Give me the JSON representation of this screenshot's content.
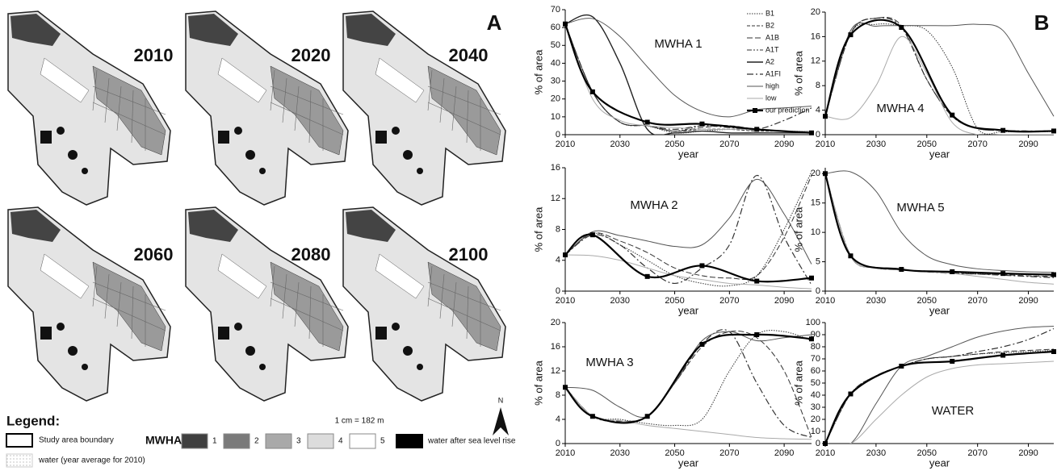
{
  "panel_a": {
    "label": "A",
    "years": [
      "2010",
      "2020",
      "2040",
      "2060",
      "2080",
      "2100"
    ],
    "scale": "1 cm = 182 m",
    "north": "N",
    "legend": {
      "title": "Legend:",
      "boundary": "Study area boundary",
      "mwha_title": "MWHA",
      "mwha_classes": [
        "1",
        "2",
        "3",
        "4",
        "5"
      ],
      "mwha_colors": [
        "#3f3f3f",
        "#7a7a7a",
        "#a9a9a9",
        "#dcdcdc",
        "#ffffff"
      ],
      "sea_rise": "water after sea level rise",
      "water_2010": "water (year average for 2010)"
    }
  },
  "panel_b_label": "B",
  "chart_data": [
    {
      "type": "line",
      "annotation": "MWHA 1",
      "y_label": "% of area",
      "x_label": "year",
      "legend": "upper right",
      "x": [
        2010,
        2020,
        2030,
        2040,
        2050,
        2060,
        2070,
        2080,
        2090,
        2100
      ],
      "xlim": [
        2010,
        2100
      ],
      "xticks": [
        2010,
        2030,
        2050,
        2070,
        2090
      ],
      "ylim": [
        0,
        70
      ],
      "yticks": [
        0,
        10,
        20,
        30,
        40,
        50,
        60,
        70
      ],
      "series": [
        {
          "name": "B1",
          "style": "dotted",
          "color": "#333",
          "values": [
            62,
            24,
            7,
            5,
            1,
            2,
            3,
            3,
            2,
            2
          ]
        },
        {
          "name": "B2",
          "style": "dashed",
          "color": "#333",
          "values": [
            62,
            24,
            7,
            5,
            2,
            3,
            3,
            2,
            2,
            1
          ]
        },
        {
          "name": "A1B",
          "style": "long-dashed",
          "color": "#333",
          "values": [
            62,
            24,
            7,
            5,
            2,
            4,
            5,
            3,
            2,
            1
          ]
        },
        {
          "name": "A1T",
          "style": "dash-dot-dot",
          "color": "#333",
          "values": [
            62,
            24,
            7,
            5,
            2,
            5,
            5,
            3,
            2,
            1
          ]
        },
        {
          "name": "A2",
          "style": "solid-dark",
          "color": "#222",
          "values": [
            62,
            66,
            40,
            3,
            1,
            2,
            1,
            1,
            1,
            1
          ]
        },
        {
          "name": "A1FI",
          "style": "dash-dot",
          "color": "#333",
          "values": [
            62,
            24,
            7,
            5,
            3,
            5,
            4,
            3,
            8,
            15
          ]
        },
        {
          "name": "high",
          "style": "solid",
          "color": "#555",
          "values": [
            62,
            65,
            55,
            38,
            22,
            13,
            10,
            14,
            15,
            16
          ]
        },
        {
          "name": "low",
          "style": "solid",
          "color": "#aaa",
          "values": [
            62,
            20,
            8,
            5,
            4,
            3,
            3,
            3,
            2,
            2
          ]
        },
        {
          "name": "our prediction",
          "style": "bold",
          "color": "#000",
          "marker": "square",
          "x": [
            2010,
            2020,
            2040,
            2060,
            2080,
            2100
          ],
          "values": [
            62,
            24,
            7,
            6,
            3,
            1
          ]
        }
      ]
    },
    {
      "type": "line",
      "annotation": "MWHA 4",
      "y_label": "% of area",
      "x_label": "year",
      "x": [
        2010,
        2020,
        2030,
        2040,
        2050,
        2060,
        2070,
        2080,
        2090,
        2100
      ],
      "xlim": [
        2010,
        2100
      ],
      "xticks": [
        2010,
        2030,
        2050,
        2070,
        2090
      ],
      "ylim": [
        0,
        20
      ],
      "yticks": [
        0,
        4,
        8,
        12,
        16,
        20
      ],
      "series": [
        {
          "style": "dotted",
          "color": "#333",
          "values": [
            3,
            16.5,
            18,
            17.8,
            17,
            11,
            1,
            0.5,
            0.5,
            0.5
          ]
        },
        {
          "style": "long-dashed",
          "color": "#333",
          "values": [
            3,
            16.5,
            19,
            17.8,
            9,
            3,
            1,
            0.7,
            0.6,
            0.6
          ]
        },
        {
          "style": "dash-dot",
          "color": "#333",
          "values": [
            3,
            16.5,
            19,
            17.5,
            9,
            3,
            1,
            0.7,
            0.6,
            0.6
          ]
        },
        {
          "style": "solid",
          "color": "#555",
          "values": [
            3,
            17,
            17.7,
            17.8,
            17.8,
            17.8,
            18,
            17,
            10,
            3
          ]
        },
        {
          "style": "solid",
          "color": "#aaa",
          "values": [
            3,
            2.8,
            8,
            16,
            10,
            2,
            0,
            0,
            0,
            0
          ]
        },
        {
          "style": "bold",
          "color": "#000",
          "marker": "square",
          "x": [
            2010,
            2020,
            2040,
            2060,
            2080,
            2100
          ],
          "values": [
            3,
            16.3,
            17.5,
            3.2,
            0.7,
            0.6
          ]
        }
      ]
    },
    {
      "type": "line",
      "annotation": "MWHA 2",
      "y_label": "% of area",
      "x_label": "year",
      "x": [
        2010,
        2020,
        2030,
        2040,
        2050,
        2060,
        2070,
        2080,
        2090,
        2100
      ],
      "xlim": [
        2010,
        2100
      ],
      "xticks": [
        2010,
        2030,
        2050,
        2070,
        2090
      ],
      "ylim": [
        0,
        16
      ],
      "yticks": [
        0,
        4,
        8,
        12,
        16
      ],
      "series": [
        {
          "style": "dotted",
          "color": "#333",
          "values": [
            4.7,
            7.5,
            6,
            4,
            2,
            1,
            0.7,
            2,
            8,
            15.5
          ]
        },
        {
          "style": "long-dashed",
          "color": "#333",
          "values": [
            4.7,
            7.5,
            6.5,
            5,
            3,
            2,
            1.7,
            2,
            7,
            15
          ]
        },
        {
          "style": "dash-dot",
          "color": "#333",
          "values": [
            4.7,
            7.3,
            6,
            3,
            1,
            3,
            6,
            15,
            7,
            0.8
          ]
        },
        {
          "style": "solid",
          "color": "#555",
          "values": [
            4.7,
            7.7,
            7.2,
            6.5,
            5.8,
            6,
            9.5,
            14.5,
            10,
            3.5
          ]
        },
        {
          "style": "solid",
          "color": "#aaa",
          "values": [
            4.7,
            4.6,
            4,
            3,
            2,
            1.5,
            1,
            0.8,
            0.5,
            0.3
          ]
        },
        {
          "style": "bold",
          "color": "#000",
          "marker": "square",
          "x": [
            2010,
            2020,
            2040,
            2060,
            2080,
            2100
          ],
          "values": [
            4.7,
            7.3,
            1.9,
            3.3,
            1.3,
            1.7
          ]
        }
      ]
    },
    {
      "type": "line",
      "annotation": "MWHA 5",
      "y_label": "% of area",
      "x_label": "year",
      "x": [
        2010,
        2020,
        2030,
        2040,
        2050,
        2060,
        2070,
        2080,
        2090,
        2100
      ],
      "xlim": [
        2010,
        2100
      ],
      "xticks": [
        2010,
        2030,
        2050,
        2070,
        2090
      ],
      "ylim": [
        0,
        21
      ],
      "yticks": [
        0,
        5,
        10,
        15,
        20
      ],
      "series": [
        {
          "style": "dotted",
          "color": "#333",
          "values": [
            20,
            6,
            4,
            3.6,
            3.3,
            3.2,
            3,
            2.9,
            2.8,
            2.7
          ]
        },
        {
          "style": "long-dashed",
          "color": "#333",
          "values": [
            20,
            6,
            4,
            3.6,
            3.3,
            3.1,
            2.9,
            2.8,
            2.6,
            2.5
          ]
        },
        {
          "style": "dash-dot",
          "color": "#333",
          "values": [
            20,
            6,
            4,
            3.6,
            3.3,
            3,
            2.9,
            2.7,
            2.5,
            2.3
          ]
        },
        {
          "style": "solid",
          "color": "#555",
          "values": [
            20,
            20.3,
            17,
            10,
            6,
            4.5,
            3.8,
            3.5,
            3.3,
            3.2
          ]
        },
        {
          "style": "solid",
          "color": "#aaa",
          "values": [
            20,
            6,
            4,
            3.6,
            3.3,
            3,
            2.5,
            2,
            1.5,
            1.2
          ]
        },
        {
          "style": "bold",
          "color": "#000",
          "marker": "square",
          "x": [
            2010,
            2020,
            2040,
            2060,
            2080,
            2100
          ],
          "values": [
            20,
            6,
            3.7,
            3.3,
            3,
            2.8
          ]
        }
      ]
    },
    {
      "type": "line",
      "annotation": "MWHA 3",
      "y_label": "% of area",
      "x_label": "year",
      "x": [
        2010,
        2020,
        2030,
        2040,
        2050,
        2060,
        2070,
        2080,
        2090,
        2100
      ],
      "xlim": [
        2010,
        2100
      ],
      "xticks": [
        2010,
        2030,
        2050,
        2070,
        2090
      ],
      "ylim": [
        0,
        20
      ],
      "yticks": [
        0,
        4,
        8,
        12,
        16,
        20
      ],
      "series": [
        {
          "style": "dotted",
          "color": "#333",
          "values": [
            9.3,
            4.5,
            4,
            3.3,
            3,
            4,
            12,
            18,
            18.5,
            17
          ]
        },
        {
          "style": "long-dashed",
          "color": "#333",
          "values": [
            9.3,
            4.5,
            3.7,
            4.5,
            10,
            16,
            18.5,
            17.5,
            12,
            1
          ]
        },
        {
          "style": "dash-dot",
          "color": "#333",
          "values": [
            9.3,
            4.5,
            3.7,
            4.5,
            10,
            16.5,
            18.5,
            10,
            3,
            1
          ]
        },
        {
          "style": "solid",
          "color": "#555",
          "values": [
            9.3,
            8.8,
            6,
            4.5,
            10,
            17,
            18.5,
            17,
            17.5,
            18
          ]
        },
        {
          "style": "solid",
          "color": "#aaa",
          "values": [
            9.3,
            4.5,
            3.8,
            3,
            2.5,
            2,
            1.5,
            1,
            0.8,
            0.7
          ]
        },
        {
          "style": "bold",
          "color": "#000",
          "marker": "square",
          "x": [
            2010,
            2020,
            2040,
            2060,
            2080,
            2100
          ],
          "values": [
            9.3,
            4.5,
            4.5,
            16.4,
            18,
            17.3
          ]
        }
      ]
    },
    {
      "type": "line",
      "annotation": "WATER",
      "y_label": "% of area",
      "x_label": "year",
      "x": [
        2010,
        2020,
        2030,
        2040,
        2050,
        2060,
        2070,
        2080,
        2090,
        2100
      ],
      "xlim": [
        2010,
        2100
      ],
      "xticks": [
        2010,
        2030,
        2050,
        2070,
        2090
      ],
      "ylim": [
        0,
        100
      ],
      "yticks": [
        0,
        10,
        20,
        30,
        40,
        50,
        60,
        70,
        80,
        90,
        100
      ],
      "series": [
        {
          "style": "dotted",
          "color": "#333",
          "values": [
            0,
            41,
            56,
            64,
            70,
            72,
            74,
            75,
            76,
            77
          ]
        },
        {
          "style": "long-dashed",
          "color": "#333",
          "values": [
            0,
            41,
            56,
            64,
            70,
            72,
            74,
            76,
            77,
            78
          ]
        },
        {
          "style": "dash-dot",
          "color": "#333",
          "values": [
            0,
            41,
            56,
            64,
            70,
            72,
            76,
            80,
            86,
            95
          ]
        },
        {
          "style": "solid",
          "color": "#555",
          "values": [
            0,
            0,
            33,
            64,
            72,
            80,
            88,
            93,
            96,
            97
          ]
        },
        {
          "style": "solid",
          "color": "#aaa",
          "values": [
            0,
            0,
            20,
            40,
            55,
            62,
            65,
            66,
            67,
            68
          ]
        },
        {
          "style": "bold",
          "color": "#000",
          "marker": "square",
          "x": [
            2010,
            2020,
            2040,
            2060,
            2080,
            2100
          ],
          "values": [
            0,
            41,
            64,
            68,
            73,
            76
          ]
        }
      ]
    }
  ]
}
